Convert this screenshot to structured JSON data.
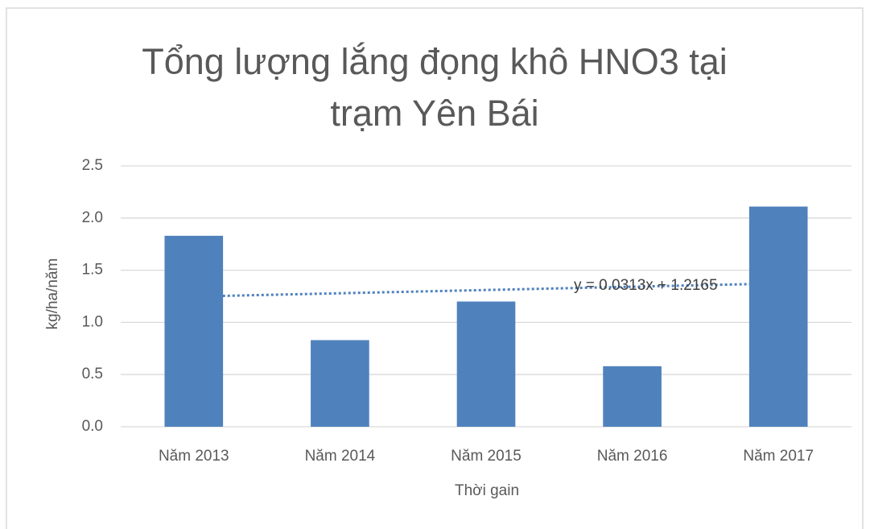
{
  "chart_data": {
    "type": "bar",
    "title": "Tổng lượng lắng đọng khô HNO3 tại trạm Yên Bái",
    "xlabel": "Thời gain",
    "ylabel": "kg/ha/năm",
    "categories": [
      "Năm 2013",
      "Năm 2014",
      "Năm 2015",
      "Năm 2016",
      "Năm 2017"
    ],
    "values": [
      1.83,
      0.83,
      1.2,
      0.58,
      2.11
    ],
    "color": "#4f81bd",
    "ylim": [
      0,
      2.5
    ],
    "yticks": [
      {
        "value": 0,
        "label": "0.0"
      },
      0.5,
      {
        "value": 1,
        "label": "1.0"
      },
      1.5,
      {
        "value": 2,
        "label": "2.0"
      },
      2.5
    ],
    "grid": true,
    "trendline": {
      "equation": "y = 0.0313x + 1.2165",
      "slope": 0.0313,
      "intercept": 1.2165
    }
  }
}
